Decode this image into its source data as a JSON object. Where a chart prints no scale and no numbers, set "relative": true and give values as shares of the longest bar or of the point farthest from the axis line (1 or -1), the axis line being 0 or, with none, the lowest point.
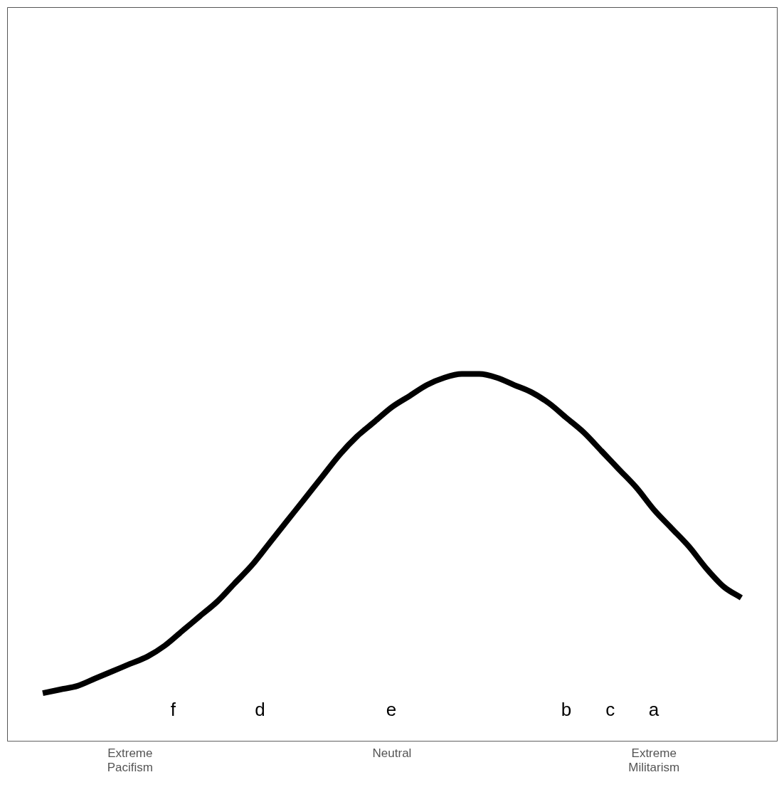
{
  "chart_data": {
    "type": "line",
    "relative": true,
    "marker": "none",
    "line_style": "solid",
    "grid": false,
    "legend": false,
    "categories": [
      null,
      null,
      null,
      null,
      null,
      "Extreme Pacifism",
      null,
      null,
      null,
      null,
      null,
      null,
      null,
      null,
      null,
      null,
      null,
      null,
      null,
      null,
      "Neutral",
      null,
      null,
      null,
      null,
      null,
      null,
      null,
      null,
      null,
      null,
      null,
      null,
      null,
      null,
      "Extreme Militarism",
      null,
      null,
      null,
      null,
      null
    ],
    "series": [
      {
        "color": "#000000",
        "values": [
          0.13,
          0.14,
          0.15,
          0.17,
          0.19,
          0.21,
          0.23,
          0.26,
          0.3,
          0.34,
          0.38,
          0.43,
          0.48,
          0.54,
          0.6,
          0.66,
          0.72,
          0.78,
          0.83,
          0.87,
          0.91,
          0.94,
          0.97,
          0.99,
          1.0,
          1.0,
          0.99,
          0.97,
          0.95,
          0.92,
          0.88,
          0.84,
          0.79,
          0.74,
          0.69,
          0.63,
          0.58,
          0.53,
          0.47,
          0.42,
          0.39
        ]
      }
    ],
    "annotations": [
      "f",
      "d",
      "e",
      "b",
      "c",
      "a"
    ]
  }
}
